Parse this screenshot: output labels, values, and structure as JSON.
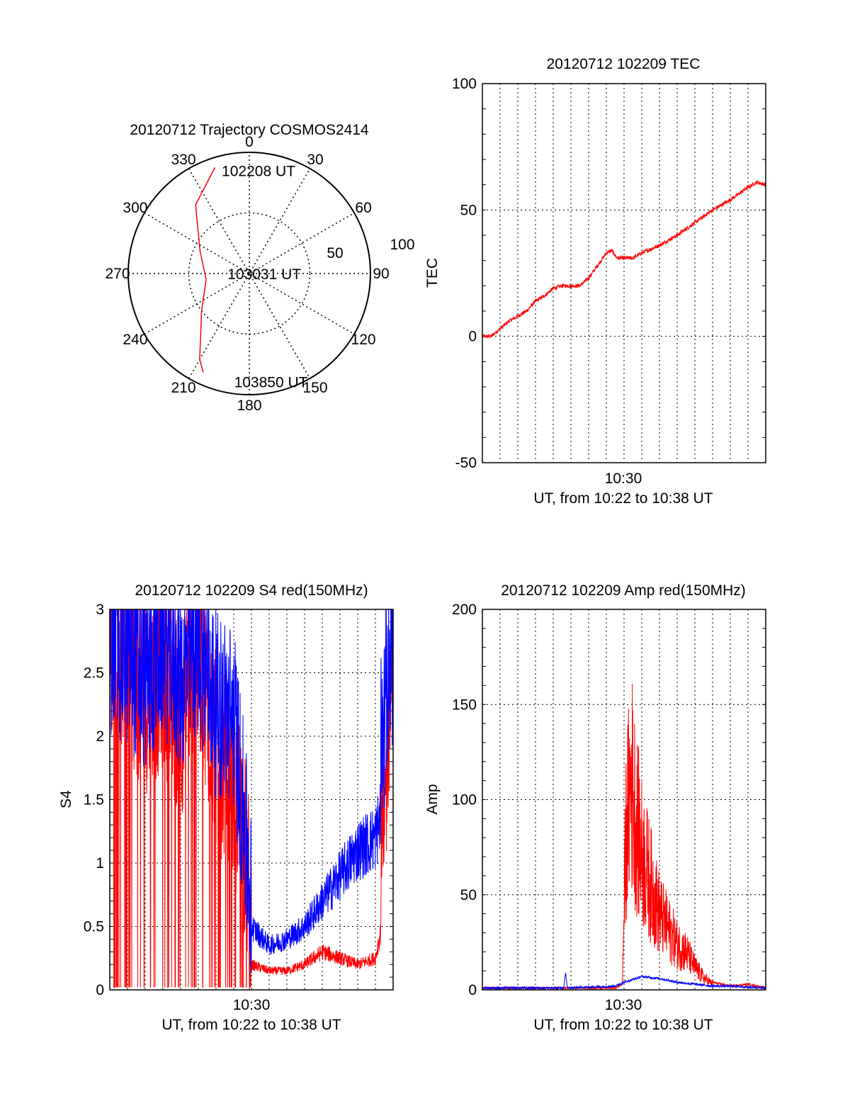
{
  "chart_data": [
    {
      "type": "polar",
      "title": "20120712 Trajectory COSMOS2414",
      "angle_labels": [
        "0",
        "30",
        "60",
        "90",
        "120",
        "150",
        "180",
        "210",
        "240",
        "270",
        "300",
        "330"
      ],
      "radial_ticks": [
        50,
        100
      ],
      "trajectory_color": "#ff0000",
      "trajectory": [
        {
          "az": 342,
          "el": 8
        },
        {
          "az": 322,
          "el": 28
        },
        {
          "az": 295,
          "el": 55
        },
        {
          "az": 262,
          "el": 64
        },
        {
          "az": 232,
          "el": 50
        },
        {
          "az": 210,
          "el": 18
        },
        {
          "az": 205,
          "el": 10
        }
      ],
      "annotations": [
        {
          "text": "102208 UT",
          "az": 345,
          "el": 12
        },
        {
          "text": "103031 UT",
          "az": 270,
          "el": 82
        },
        {
          "text": "103850 UT",
          "az": 188,
          "el": 10
        }
      ]
    },
    {
      "type": "line",
      "title": "20120712 102209 TEC",
      "xlabel": "UT, from 10:22 to 10:38 UT",
      "ylabel": "TEC",
      "xtick_label": "10:30",
      "xlim": [
        0,
        16
      ],
      "ylim": [
        -50,
        100
      ],
      "yticks": [
        -50,
        0,
        50,
        100
      ],
      "grid": true,
      "series": [
        {
          "color": "#ff0000",
          "x": [
            0,
            0.5,
            1,
            1.5,
            2,
            2.5,
            3,
            3.5,
            4,
            4.5,
            5,
            5.5,
            6,
            6.5,
            7,
            7.3,
            7.6,
            8,
            8.5,
            9,
            10,
            11,
            12,
            13,
            14,
            15,
            15.5,
            16
          ],
          "y": [
            0,
            0,
            3,
            6,
            8,
            10,
            14,
            16,
            19,
            20,
            20,
            20,
            23,
            28,
            33,
            34,
            31,
            31,
            31,
            33,
            36,
            40,
            45,
            50,
            54,
            59,
            61,
            60
          ]
        }
      ]
    },
    {
      "type": "line",
      "title": "20120712 102209 S4 red(150MHz)",
      "xlabel": "UT, from 10:22 to 10:38 UT",
      "ylabel": "S4",
      "xtick_label": "10:30",
      "xlim": [
        0,
        16
      ],
      "ylim": [
        0,
        3
      ],
      "yticks": [
        0,
        0.5,
        1,
        1.5,
        2,
        2.5,
        3
      ],
      "ytick_labels": [
        "0",
        "0.5",
        "1",
        "1.5",
        "2",
        "2.5",
        "3"
      ],
      "grid": true,
      "series": [
        {
          "color": "#ff0000",
          "x": [
            0,
            1,
            2,
            3,
            4,
            5,
            6,
            7,
            7.5,
            8,
            9,
            10,
            11,
            12,
            13,
            14,
            15,
            15.5,
            16
          ],
          "y": [
            2.5,
            2.3,
            2.0,
            2.2,
            1.8,
            2.4,
            1.6,
            1.3,
            1.0,
            0.2,
            0.15,
            0.15,
            0.2,
            0.3,
            0.25,
            0.2,
            0.25,
            0.6,
            2.5
          ]
        },
        {
          "color": "#0000ff",
          "x": [
            0,
            1,
            2,
            3,
            4,
            5,
            6,
            7,
            7.5,
            8,
            9,
            10,
            11,
            12,
            13,
            14,
            15,
            15.5,
            16
          ],
          "y": [
            2.6,
            2.5,
            2.3,
            2.6,
            2.3,
            2.6,
            2.1,
            2.0,
            1.3,
            0.5,
            0.35,
            0.4,
            0.5,
            0.7,
            0.9,
            1.1,
            1.2,
            1.5,
            2.5
          ]
        }
      ]
    },
    {
      "type": "line",
      "title": "20120712 102209 Amp red(150MHz)",
      "xlabel": "UT, from 10:22 to 10:38 UT",
      "ylabel": "Amp",
      "xtick_label": "10:30",
      "xlim": [
        0,
        16
      ],
      "ylim": [
        0,
        200
      ],
      "yticks": [
        0,
        50,
        100,
        150,
        200
      ],
      "grid": true,
      "series": [
        {
          "color": "#ff0000",
          "x": [
            0,
            7.5,
            7.9,
            8.1,
            8.4,
            8.7,
            9,
            9.5,
            10,
            10.5,
            11,
            11.5,
            12,
            12.5,
            13,
            14,
            15,
            16
          ],
          "y": [
            1,
            1,
            3,
            100,
            140,
            110,
            90,
            70,
            50,
            40,
            30,
            25,
            15,
            8,
            4,
            2,
            3,
            1
          ]
        },
        {
          "color": "#0000ff",
          "x": [
            0,
            4.6,
            4.7,
            4.8,
            7.5,
            8,
            9,
            10,
            11,
            12,
            13,
            14,
            16
          ],
          "y": [
            1,
            1,
            9,
            1,
            2,
            4,
            7,
            6,
            4,
            3,
            2,
            2,
            1
          ]
        }
      ]
    }
  ]
}
